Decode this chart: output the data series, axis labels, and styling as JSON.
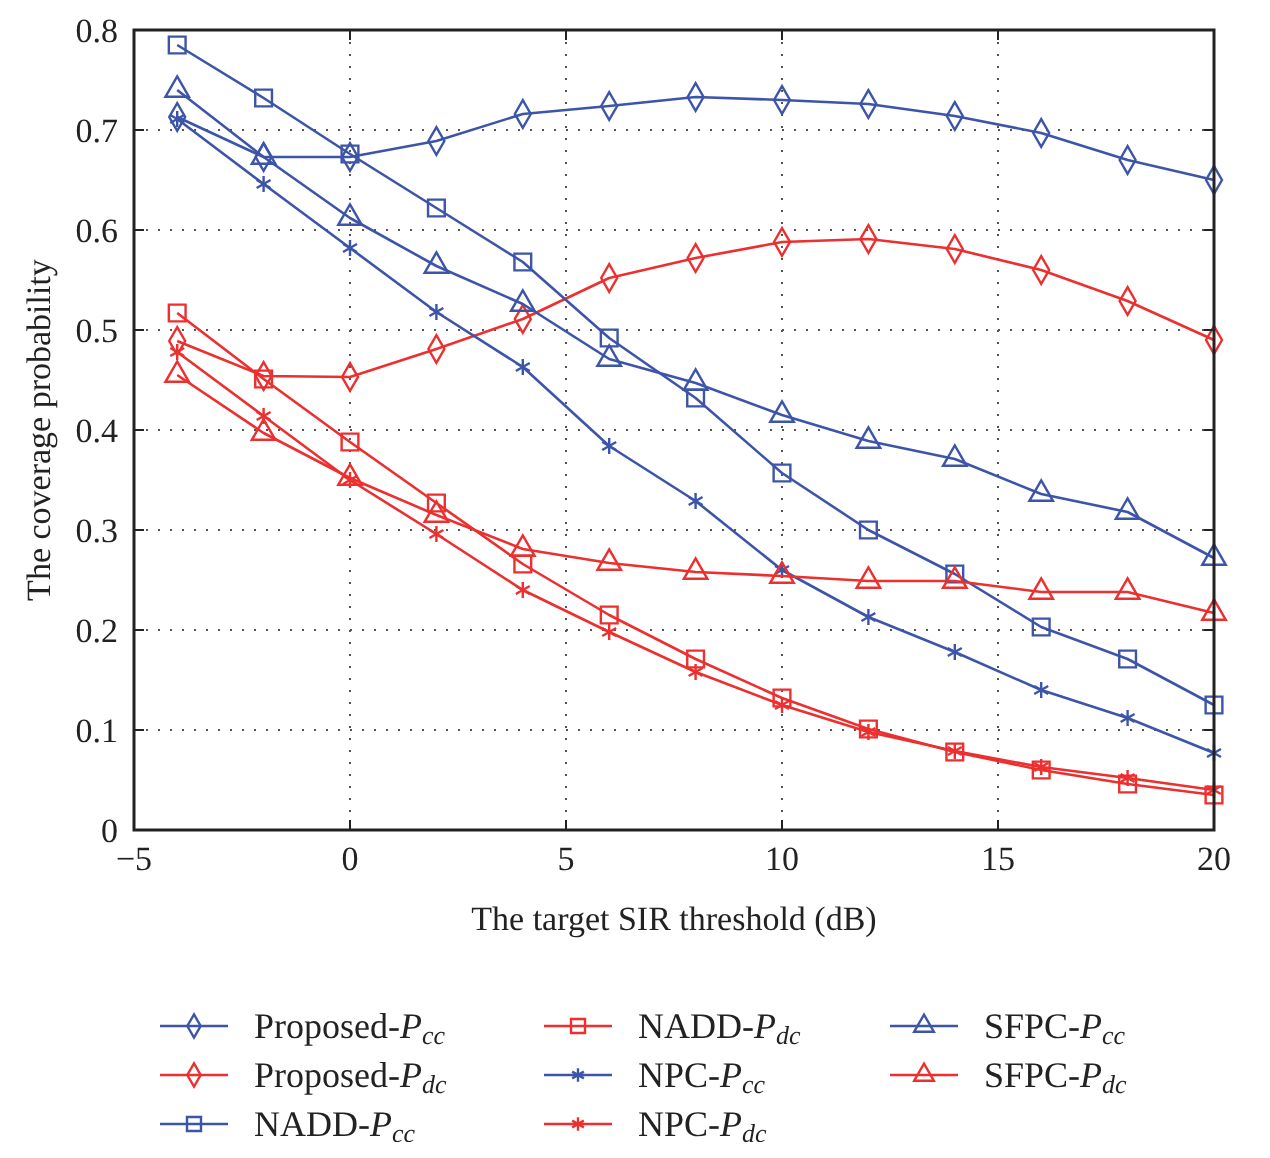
{
  "chart_data": {
    "type": "line",
    "xlabel": "The target SIR threshold (dB)",
    "ylabel": "The coverage probability",
    "x": [
      -4,
      -2,
      0,
      2,
      4,
      6,
      8,
      10,
      12,
      14,
      16,
      18,
      20
    ],
    "xlim": [
      -5,
      20
    ],
    "xticks": [
      {
        "value": -5,
        "label": "−5"
      },
      0,
      5,
      10,
      15,
      20
    ],
    "ylim": [
      0,
      0.8
    ],
    "yticks": [
      0,
      0.1,
      0.2,
      0.3,
      0.4,
      0.5,
      0.6,
      0.7,
      0.8
    ],
    "grid": true,
    "legend": "bottom",
    "line_style": "solid",
    "series": [
      {
        "name": "Proposed-P$_{cc}$",
        "color": "#3d55a8",
        "marker": "diamond",
        "values": [
          0.713,
          0.673,
          0.673,
          0.689,
          0.716,
          0.724,
          0.733,
          0.73,
          0.726,
          0.714,
          0.697,
          0.67,
          0.65
        ]
      },
      {
        "name": "Proposed-P$_{dc}$",
        "color": "#ec2f2f",
        "marker": "diamond",
        "values": [
          0.489,
          0.454,
          0.453,
          0.481,
          0.511,
          0.552,
          0.572,
          0.588,
          0.591,
          0.581,
          0.56,
          0.529,
          0.49
        ]
      },
      {
        "name": "NADD-P$_{cc}$",
        "color": "#3d55a8",
        "marker": "square",
        "values": [
          0.785,
          0.732,
          0.676,
          0.622,
          0.568,
          0.492,
          0.432,
          0.357,
          0.3,
          0.256,
          0.203,
          0.171,
          0.125
        ]
      },
      {
        "name": "NADD-P$_{dc}$",
        "color": "#ec2f2f",
        "marker": "square",
        "values": [
          0.517,
          0.451,
          0.388,
          0.327,
          0.266,
          0.215,
          0.171,
          0.132,
          0.101,
          0.078,
          0.06,
          0.046,
          0.035
        ]
      },
      {
        "name": "NPC-P$_{cc}$",
        "color": "#3d55a8",
        "marker": "cross",
        "values": [
          0.711,
          0.646,
          0.582,
          0.518,
          0.463,
          0.384,
          0.329,
          0.26,
          0.213,
          0.178,
          0.14,
          0.112,
          0.077
        ]
      },
      {
        "name": "NPC-P$_{dc}$",
        "color": "#ec2f2f",
        "marker": "cross",
        "values": [
          0.478,
          0.414,
          0.35,
          0.296,
          0.24,
          0.198,
          0.158,
          0.125,
          0.098,
          0.079,
          0.063,
          0.052,
          0.04
        ]
      },
      {
        "name": "SFPC-P$_{cc}$",
        "color": "#3d55a8",
        "marker": "triangle",
        "values": [
          0.74,
          0.673,
          0.612,
          0.564,
          0.526,
          0.471,
          0.447,
          0.415,
          0.389,
          0.371,
          0.336,
          0.318,
          0.272
        ]
      },
      {
        "name": "SFPC-P$_{dc}$",
        "color": "#ec2f2f",
        "marker": "triangle",
        "values": [
          0.455,
          0.397,
          0.352,
          0.315,
          0.281,
          0.267,
          0.258,
          0.254,
          0.249,
          0.249,
          0.238,
          0.238,
          0.217
        ]
      }
    ]
  }
}
